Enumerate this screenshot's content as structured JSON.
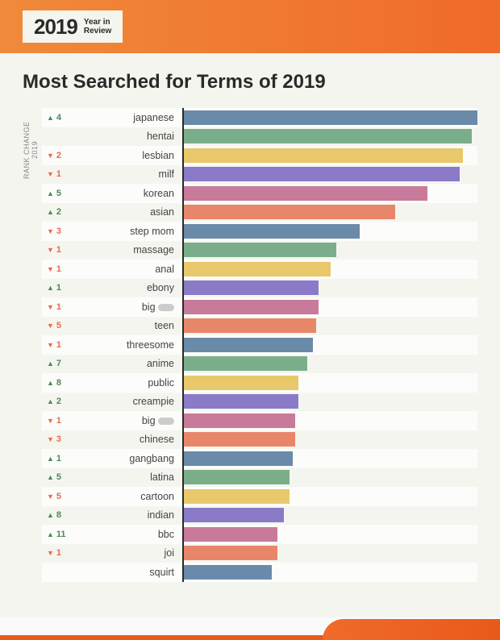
{
  "header": {
    "year": "2019",
    "subtitle_line1": "Year in",
    "subtitle_line2": "Review"
  },
  "title": "Most Searched for Terms of 2019",
  "y_axis_label": "RANK CHANGE 2019",
  "chart": {
    "type": "bar",
    "max_value": 100,
    "bar_colors_cycle": [
      "#6a8aaa",
      "#7aae8a",
      "#e8c86a",
      "#8a7ac8",
      "#c87a9a",
      "#e8866a"
    ],
    "background_color": "#f5f5f0",
    "row_alt_color": "#fcfcfa",
    "axis_color": "#2a2a2a",
    "up_color": "#4a8a5a",
    "down_color": "#e86a4a",
    "items": [
      {
        "label": "japanese",
        "value": 100,
        "rank_dir": "up",
        "rank_change": 4
      },
      {
        "label": "hentai",
        "value": 98,
        "rank_dir": null,
        "rank_change": null
      },
      {
        "label": "lesbian",
        "value": 95,
        "rank_dir": "down",
        "rank_change": 2
      },
      {
        "label": "milf",
        "value": 94,
        "rank_dir": "down",
        "rank_change": 1
      },
      {
        "label": "korean",
        "value": 83,
        "rank_dir": "up",
        "rank_change": 5
      },
      {
        "label": "asian",
        "value": 72,
        "rank_dir": "up",
        "rank_change": 2
      },
      {
        "label": "step mom",
        "value": 60,
        "rank_dir": "down",
        "rank_change": 3
      },
      {
        "label": "massage",
        "value": 52,
        "rank_dir": "down",
        "rank_change": 1
      },
      {
        "label": "anal",
        "value": 50,
        "rank_dir": "down",
        "rank_change": 1
      },
      {
        "label": "ebony",
        "value": 46,
        "rank_dir": "up",
        "rank_change": 1
      },
      {
        "label": "big ",
        "value": 46,
        "rank_dir": "down",
        "rank_change": 1,
        "censored": true
      },
      {
        "label": "teen",
        "value": 45,
        "rank_dir": "down",
        "rank_change": 5
      },
      {
        "label": "threesome",
        "value": 44,
        "rank_dir": "down",
        "rank_change": 1
      },
      {
        "label": "anime",
        "value": 42,
        "rank_dir": "up",
        "rank_change": 7
      },
      {
        "label": "public",
        "value": 39,
        "rank_dir": "up",
        "rank_change": 8
      },
      {
        "label": "creampie",
        "value": 39,
        "rank_dir": "up",
        "rank_change": 2
      },
      {
        "label": "big ",
        "value": 38,
        "rank_dir": "down",
        "rank_change": 1,
        "censored": true
      },
      {
        "label": "chinese",
        "value": 38,
        "rank_dir": "down",
        "rank_change": 3
      },
      {
        "label": "gangbang",
        "value": 37,
        "rank_dir": "up",
        "rank_change": 1
      },
      {
        "label": "latina",
        "value": 36,
        "rank_dir": "up",
        "rank_change": 5
      },
      {
        "label": "cartoon",
        "value": 36,
        "rank_dir": "down",
        "rank_change": 5
      },
      {
        "label": "indian",
        "value": 34,
        "rank_dir": "up",
        "rank_change": 8
      },
      {
        "label": "bbc",
        "value": 32,
        "rank_dir": "up",
        "rank_change": 11
      },
      {
        "label": "joi",
        "value": 32,
        "rank_dir": "down",
        "rank_change": 1
      },
      {
        "label": "squirt",
        "value": 30,
        "rank_dir": null,
        "rank_change": null
      }
    ]
  }
}
